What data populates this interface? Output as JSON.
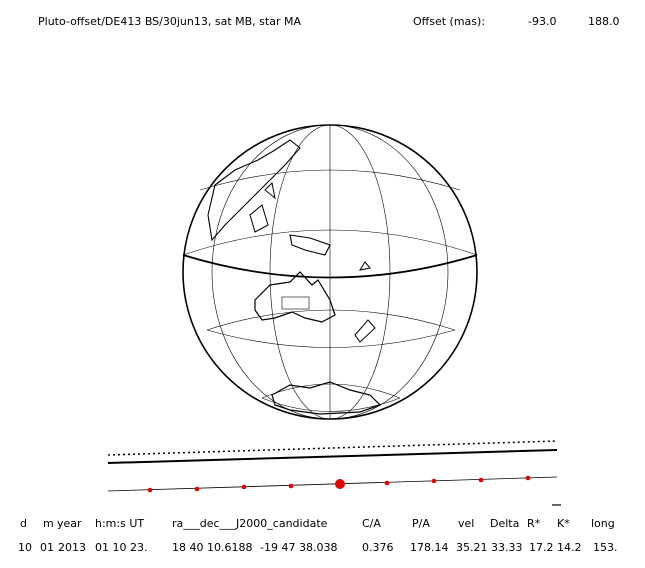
{
  "header": {
    "title": "Pluto-offset/DE413 BS/30jun13, sat MB, star MA",
    "offset_label": "Offset (mas):",
    "offset_values": [
      "-93.0",
      "188.0"
    ]
  },
  "table": {
    "columns": [
      "d",
      "m",
      "year",
      "h:m:s UT",
      "ra___dec___J2000_candidate",
      "C/A",
      "P/A",
      "vel",
      "Delta",
      "R*",
      "K*",
      "long"
    ],
    "row": [
      "10",
      "01",
      "2013",
      "01 10 23.",
      "18 40 10.6188",
      "-19 47 38.038",
      "0.376",
      "178.14",
      "35.21",
      "33.33",
      "17.2",
      "14.2",
      "153."
    ]
  }
}
